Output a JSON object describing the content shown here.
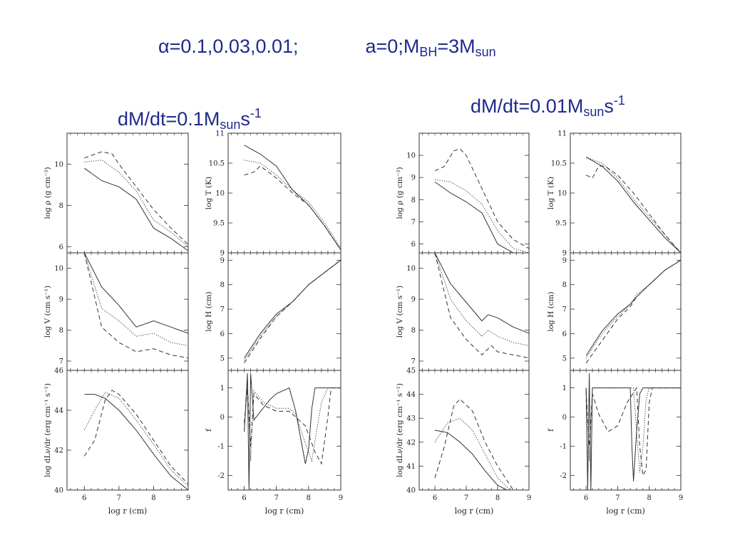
{
  "header": {
    "alpha_symbol": "α",
    "alpha_values": "=0.1,0.03,0.01;",
    "spin": "a=0;M",
    "bh_sub": "BH",
    "mass_eq": "=3M",
    "sun_sub": "sun"
  },
  "groups": [
    {
      "prefix": "dM/dt=0.1M",
      "sub": "sun",
      "unit": "s",
      "sup": "-1"
    },
    {
      "prefix": "dM/dt=0.01M",
      "sub": "sun",
      "unit": "s",
      "sup": "-1"
    }
  ],
  "line_styles": [
    "solid",
    "dotted",
    "dashed"
  ],
  "chart_data": [
    {
      "panel": "left-rho",
      "type": "line",
      "ylabel": "log ρ (g cm⁻³)",
      "xlabel": "",
      "xlim": [
        5.5,
        9
      ],
      "ylim": [
        5.7,
        11.5
      ],
      "yticks": [
        6,
        8,
        10
      ],
      "xticks": [],
      "series": [
        {
          "style": "solid",
          "x": [
            6,
            6.5,
            7,
            7.5,
            8,
            8.5,
            9
          ],
          "y": [
            9.8,
            9.2,
            8.9,
            8.3,
            6.9,
            6.4,
            5.8
          ]
        },
        {
          "style": "dotted",
          "x": [
            6,
            6.5,
            7,
            7.5,
            8,
            8.5,
            9
          ],
          "y": [
            10.1,
            10.2,
            9.6,
            8.7,
            7.3,
            6.7,
            6.0
          ]
        },
        {
          "style": "dashed",
          "x": [
            6,
            6.5,
            6.8,
            7,
            7.5,
            8,
            8.5,
            9
          ],
          "y": [
            10.3,
            10.6,
            10.5,
            10.0,
            8.9,
            7.8,
            6.9,
            6.1
          ]
        }
      ]
    },
    {
      "panel": "left-T",
      "type": "line",
      "ylabel": "log T (K)",
      "xlabel": "",
      "xlim": [
        5.5,
        9
      ],
      "ylim": [
        9,
        11
      ],
      "yticks": [
        9,
        9.5,
        10,
        10.5,
        11
      ],
      "xticks": [],
      "series": [
        {
          "style": "solid",
          "x": [
            6,
            6.5,
            7,
            7.5,
            8,
            8.5,
            9
          ],
          "y": [
            10.8,
            10.65,
            10.45,
            10.05,
            9.8,
            9.45,
            9.05
          ]
        },
        {
          "style": "dotted",
          "x": [
            6,
            6.5,
            7,
            7.5,
            8,
            8.5,
            9
          ],
          "y": [
            10.55,
            10.5,
            10.3,
            10.05,
            9.85,
            9.5,
            9.08
          ]
        },
        {
          "style": "dashed",
          "x": [
            6,
            6.3,
            6.5,
            7,
            7.5,
            8,
            8.5,
            9
          ],
          "y": [
            10.3,
            10.35,
            10.45,
            10.25,
            10.0,
            9.8,
            9.45,
            9.05
          ]
        }
      ]
    },
    {
      "panel": "left-V",
      "type": "line",
      "ylabel": "log V (cm s⁻¹)",
      "xlabel": "",
      "xlim": [
        5.5,
        9
      ],
      "ylim": [
        6.7,
        10.5
      ],
      "yticks": [
        7,
        8,
        9,
        10
      ],
      "xticks": [],
      "series": [
        {
          "style": "solid",
          "x": [
            6,
            6.5,
            7,
            7.5,
            8,
            8.5,
            9
          ],
          "y": [
            10.5,
            9.4,
            8.8,
            8.1,
            8.3,
            8.1,
            7.9
          ]
        },
        {
          "style": "dotted",
          "x": [
            6,
            6.5,
            7,
            7.5,
            8,
            8.5,
            9
          ],
          "y": [
            10.5,
            8.7,
            8.3,
            7.8,
            7.9,
            7.6,
            7.5
          ]
        },
        {
          "style": "dashed",
          "x": [
            6,
            6.5,
            7,
            7.5,
            8,
            8.5,
            9
          ],
          "y": [
            10.5,
            8.1,
            7.6,
            7.3,
            7.4,
            7.2,
            7.1
          ]
        }
      ]
    },
    {
      "panel": "left-H",
      "type": "line",
      "ylabel": "log H (cm)",
      "xlabel": "",
      "xlim": [
        5.5,
        9
      ],
      "ylim": [
        4.5,
        9.3
      ],
      "yticks": [
        5,
        6,
        7,
        8,
        9
      ],
      "xticks": [],
      "series": [
        {
          "style": "solid",
          "x": [
            6,
            6.5,
            7,
            7.5,
            8,
            8.5,
            9
          ],
          "y": [
            5.0,
            6.0,
            6.8,
            7.3,
            8.0,
            8.5,
            9.0
          ]
        },
        {
          "style": "dotted",
          "x": [
            6,
            6.5,
            7,
            7.5,
            8,
            8.5,
            9
          ],
          "y": [
            4.9,
            5.9,
            6.7,
            7.3,
            8.0,
            8.5,
            9.0
          ]
        },
        {
          "style": "dashed",
          "x": [
            6,
            6.5,
            7,
            7.5,
            8,
            8.5,
            9
          ],
          "y": [
            4.8,
            5.8,
            6.7,
            7.3,
            8.0,
            8.5,
            9.0
          ]
        }
      ]
    },
    {
      "panel": "left-dL",
      "type": "line",
      "ylabel": "log dLν/dr (erg cm⁻¹ s⁻¹)",
      "xlabel": "log r (cm)",
      "xlim": [
        5.5,
        9
      ],
      "ylim": [
        40,
        46
      ],
      "yticks": [
        40,
        42,
        44,
        46
      ],
      "xticks": [
        6,
        7,
        8,
        9
      ],
      "series": [
        {
          "style": "solid",
          "x": [
            6,
            6.3,
            6.6,
            7,
            7.5,
            8,
            8.5,
            9
          ],
          "y": [
            44.8,
            44.8,
            44.6,
            44.0,
            43.0,
            41.8,
            40.7,
            40.0
          ]
        },
        {
          "style": "dotted",
          "x": [
            6,
            6.3,
            6.6,
            7,
            7.5,
            8,
            8.5,
            9
          ],
          "y": [
            43.0,
            44.0,
            44.9,
            44.6,
            43.5,
            42.3,
            41.0,
            40.2
          ]
        },
        {
          "style": "dashed",
          "x": [
            6,
            6.3,
            6.6,
            6.8,
            7,
            7.5,
            8,
            8.5,
            9
          ],
          "y": [
            41.7,
            42.5,
            44.5,
            45.0,
            44.8,
            43.8,
            42.5,
            41.2,
            40.3
          ]
        }
      ]
    },
    {
      "panel": "left-f",
      "type": "line",
      "ylabel": "f",
      "xlabel": "log r (cm)",
      "xlim": [
        5.5,
        9
      ],
      "ylim": [
        -2.5,
        1.6
      ],
      "yticks": [
        -2,
        -1,
        0,
        1
      ],
      "xticks": [
        6,
        7,
        8,
        9
      ],
      "series": [
        {
          "style": "solid",
          "x": [
            6,
            6.1,
            6.15,
            6.2,
            6.3,
            6.8,
            7.0,
            7.4,
            7.6,
            7.8,
            7.9,
            8.0,
            8.1,
            8.2,
            8.5,
            9
          ],
          "y": [
            -0.5,
            1.5,
            -2.5,
            1.5,
            -0.1,
            0.6,
            0.8,
            1.0,
            0.2,
            -1.0,
            -1.6,
            -1.1,
            0.3,
            1.0,
            1.0,
            1.0
          ]
        },
        {
          "style": "dotted",
          "x": [
            6,
            6.1,
            6.2,
            6.3,
            6.6,
            7.0,
            7.4,
            7.6,
            7.9,
            8.1,
            8.2,
            8.4,
            8.6,
            9
          ],
          "y": [
            -0.5,
            1.2,
            -1.5,
            0.9,
            0.5,
            0.3,
            0.3,
            0.1,
            -0.9,
            -1.5,
            -0.8,
            0.5,
            1.0,
            1.0
          ]
        },
        {
          "style": "dashed",
          "x": [
            6,
            6.1,
            6.2,
            6.3,
            6.6,
            7.0,
            7.4,
            7.6,
            7.9,
            8.2,
            8.4,
            8.6,
            8.7,
            9
          ],
          "y": [
            -0.2,
            1.0,
            -1.0,
            0.8,
            0.4,
            0.2,
            0.2,
            0.0,
            -0.3,
            -1.2,
            -1.6,
            0.0,
            1.0,
            1.0
          ]
        }
      ]
    },
    {
      "panel": "right-rho",
      "type": "line",
      "ylabel": "log ρ (g cm⁻³)",
      "xlabel": "",
      "xlim": [
        5.5,
        9
      ],
      "ylim": [
        5.6,
        11
      ],
      "yticks": [
        6,
        7,
        8,
        9,
        10
      ],
      "xticks": [],
      "series": [
        {
          "style": "solid",
          "x": [
            6,
            6.5,
            7,
            7.5,
            8,
            8.5,
            9
          ],
          "y": [
            8.8,
            8.3,
            7.9,
            7.4,
            6.0,
            5.6,
            5.6
          ]
        },
        {
          "style": "dotted",
          "x": [
            6,
            6.5,
            7,
            7.5,
            8,
            8.5,
            9
          ],
          "y": [
            8.9,
            8.8,
            8.4,
            7.8,
            6.6,
            5.8,
            5.6
          ]
        },
        {
          "style": "dashed",
          "x": [
            6,
            6.3,
            6.6,
            6.8,
            7,
            7.5,
            8,
            8.5,
            9
          ],
          "y": [
            9.3,
            9.5,
            10.2,
            10.3,
            10.0,
            8.5,
            7.0,
            6.2,
            5.8
          ]
        }
      ]
    },
    {
      "panel": "right-T",
      "type": "line",
      "ylabel": "log T (K)",
      "xlabel": "",
      "xlim": [
        5.5,
        9
      ],
      "ylim": [
        9,
        11
      ],
      "yticks": [
        9,
        9.5,
        10,
        10.5,
        11
      ],
      "xticks": [],
      "series": [
        {
          "style": "solid",
          "x": [
            6,
            6.5,
            7,
            7.5,
            8,
            8.5,
            9
          ],
          "y": [
            10.6,
            10.45,
            10.2,
            9.85,
            9.55,
            9.25,
            9.0
          ]
        },
        {
          "style": "dotted",
          "x": [
            6,
            6.5,
            7,
            7.5,
            8,
            8.5,
            9
          ],
          "y": [
            10.6,
            10.5,
            10.25,
            9.9,
            9.6,
            9.3,
            9.0
          ]
        },
        {
          "style": "dashed",
          "x": [
            6,
            6.2,
            6.4,
            6.6,
            7,
            7.5,
            8,
            8.5,
            9
          ],
          "y": [
            10.3,
            10.25,
            10.45,
            10.45,
            10.3,
            10.0,
            9.65,
            9.3,
            9.0
          ]
        }
      ]
    },
    {
      "panel": "right-V",
      "type": "line",
      "ylabel": "log V (cm s⁻¹)",
      "xlabel": "",
      "xlim": [
        5.5,
        9
      ],
      "ylim": [
        6.7,
        10.5
      ],
      "yticks": [
        7,
        8,
        9,
        10
      ],
      "xticks": [],
      "series": [
        {
          "style": "solid",
          "x": [
            6,
            6.5,
            7,
            7.5,
            7.7,
            8,
            8.5,
            9
          ],
          "y": [
            10.5,
            9.5,
            8.9,
            8.3,
            8.5,
            8.4,
            8.1,
            7.9
          ]
        },
        {
          "style": "dotted",
          "x": [
            6,
            6.5,
            7,
            7.5,
            7.7,
            8,
            8.5,
            9
          ],
          "y": [
            10.5,
            9.0,
            8.3,
            7.8,
            8.0,
            7.8,
            7.6,
            7.5
          ]
        },
        {
          "style": "dashed",
          "x": [
            6,
            6.5,
            7,
            7.5,
            7.8,
            8,
            8.5,
            9
          ],
          "y": [
            10.5,
            8.4,
            7.7,
            7.2,
            7.5,
            7.3,
            7.2,
            7.1
          ]
        }
      ]
    },
    {
      "panel": "right-H",
      "type": "line",
      "ylabel": "log H (cm)",
      "xlabel": "",
      "xlim": [
        5.5,
        9
      ],
      "ylim": [
        4.5,
        9.3
      ],
      "yticks": [
        5,
        6,
        7,
        8,
        9
      ],
      "xticks": [],
      "series": [
        {
          "style": "solid",
          "x": [
            6,
            6.5,
            7,
            7.4,
            7.6,
            8,
            8.5,
            9
          ],
          "y": [
            5.1,
            6.1,
            6.8,
            7.2,
            7.5,
            8.0,
            8.6,
            9.0
          ]
        },
        {
          "style": "dotted",
          "x": [
            6,
            6.5,
            7,
            7.4,
            7.6,
            8,
            8.5,
            9
          ],
          "y": [
            5.0,
            6.0,
            6.7,
            7.2,
            7.6,
            8.0,
            8.6,
            9.0
          ]
        },
        {
          "style": "dashed",
          "x": [
            6,
            6.5,
            7,
            7.4,
            7.6,
            8,
            8.5,
            9
          ],
          "y": [
            4.8,
            5.7,
            6.6,
            7.1,
            7.5,
            8.0,
            8.6,
            9.0
          ]
        }
      ]
    },
    {
      "panel": "right-dL",
      "type": "line",
      "ylabel": "log dLν/dr (erg cm⁻¹ s⁻¹)",
      "xlabel": "log r (cm)",
      "xlim": [
        5.5,
        9
      ],
      "ylim": [
        40,
        45
      ],
      "yticks": [
        40,
        41,
        42,
        43,
        44,
        45
      ],
      "xticks": [
        6,
        7,
        8,
        9
      ],
      "series": [
        {
          "style": "solid",
          "x": [
            6,
            6.4,
            6.8,
            7.2,
            7.6,
            8,
            8.3
          ],
          "y": [
            42.5,
            42.4,
            42.0,
            41.5,
            40.8,
            40.2,
            40.0
          ]
        },
        {
          "style": "dotted",
          "x": [
            6,
            6.4,
            6.8,
            7.2,
            7.6,
            8,
            8.4
          ],
          "y": [
            42.0,
            42.8,
            43.0,
            42.5,
            41.5,
            40.5,
            40.0
          ]
        },
        {
          "style": "dashed",
          "x": [
            6,
            6.3,
            6.6,
            6.8,
            7.2,
            7.6,
            8,
            8.5
          ],
          "y": [
            40.5,
            41.8,
            43.5,
            43.8,
            43.3,
            42.0,
            41.0,
            40.0
          ]
        }
      ]
    },
    {
      "panel": "right-f",
      "type": "line",
      "ylabel": "f",
      "xlabel": "log r (cm)",
      "xlim": [
        5.5,
        9
      ],
      "ylim": [
        -2.5,
        1.6
      ],
      "yticks": [
        -2,
        -1,
        0,
        1
      ],
      "xticks": [
        6,
        7,
        8,
        9
      ],
      "series": [
        {
          "style": "solid",
          "x": [
            6,
            6.05,
            6.1,
            6.15,
            6.2,
            6.5,
            7.0,
            7.4,
            7.45,
            7.5,
            7.6,
            7.7,
            7.8,
            8,
            9
          ],
          "y": [
            1.0,
            -2.5,
            1.5,
            -2.5,
            1.0,
            1.0,
            1.0,
            1.0,
            -1.0,
            -2.2,
            -0.5,
            0.8,
            1.0,
            1.0,
            1.0
          ]
        },
        {
          "style": "dotted",
          "x": [
            6,
            6.1,
            6.2,
            6.5,
            7.0,
            7.5,
            7.6,
            7.7,
            7.8,
            7.9,
            8,
            9
          ],
          "y": [
            1.0,
            -1.5,
            1.0,
            1.0,
            1.0,
            1.0,
            -0.5,
            -1.9,
            -1.0,
            0.6,
            1.0,
            1.0
          ]
        },
        {
          "style": "dashed",
          "x": [
            6,
            6.1,
            6.2,
            6.4,
            6.7,
            7.0,
            7.3,
            7.6,
            7.7,
            7.8,
            7.9,
            8.0,
            8.1,
            9
          ],
          "y": [
            0.9,
            -1.0,
            0.8,
            0.1,
            -0.5,
            -0.3,
            0.5,
            1.0,
            -1.0,
            -2.0,
            -1.8,
            0.5,
            1.0,
            1.0
          ]
        }
      ]
    }
  ]
}
